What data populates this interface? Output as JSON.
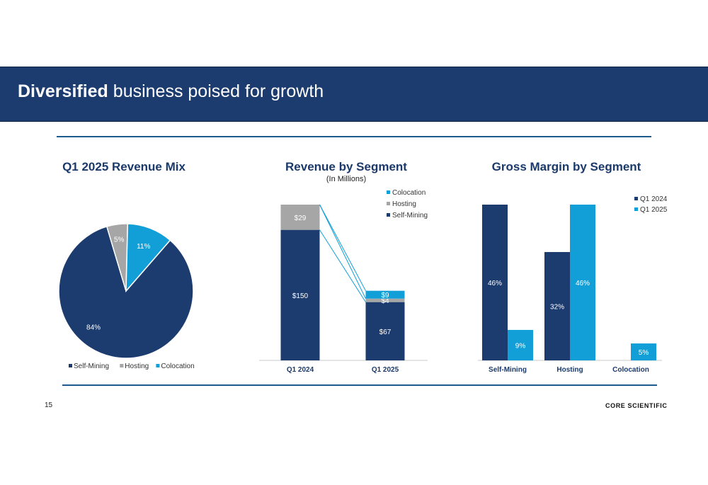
{
  "slide": {
    "title_bold": "Diversified",
    "title_rest": " business poised for growth",
    "page_number": "15",
    "logo_text": "CORE SCIENTIFIC"
  },
  "colors": {
    "navy": "#1c3b6e",
    "gray": "#a6a6a6",
    "cyan": "#129fd8",
    "rule": "#1f5a8f"
  },
  "chart_data": [
    {
      "type": "pie",
      "title": "Q1 2025 Revenue Mix",
      "categories": [
        "Self-Mining",
        "Hosting",
        "Colocation"
      ],
      "values": [
        84,
        5,
        11
      ],
      "labels": [
        "84%",
        "5%",
        "11%"
      ],
      "colors": [
        "#1c3b6e",
        "#a6a6a6",
        "#129fd8"
      ],
      "legend": "bottom"
    },
    {
      "type": "bar",
      "stacked": true,
      "title": "Revenue by Segment",
      "subtitle": "(In Millions)",
      "categories": [
        "Q1 2024",
        "Q1 2025"
      ],
      "series": [
        {
          "name": "Self-Mining",
          "values": [
            150,
            67
          ],
          "labels": [
            "$150",
            "$67"
          ],
          "color": "#1c3b6e"
        },
        {
          "name": "Hosting",
          "values": [
            29,
            4
          ],
          "labels": [
            "$29",
            "$4"
          ],
          "color": "#a6a6a6"
        },
        {
          "name": "Colocation",
          "values": [
            0,
            9
          ],
          "labels": [
            "",
            "$9"
          ],
          "color": "#129fd8"
        }
      ],
      "ylim": [
        0,
        179
      ],
      "legend": "top-right"
    },
    {
      "type": "bar",
      "title": "Gross Margin by Segment",
      "categories": [
        "Self-Mining",
        "Hosting",
        "Colocation"
      ],
      "series": [
        {
          "name": "Q1 2024",
          "values": [
            46,
            32,
            null
          ],
          "labels": [
            "46%",
            "32%",
            ""
          ],
          "color": "#1c3b6e"
        },
        {
          "name": "Q1 2025",
          "values": [
            9,
            46,
            5
          ],
          "labels": [
            "9%",
            "46%",
            "5%"
          ],
          "color": "#129fd8"
        }
      ],
      "ylim": [
        0,
        46
      ],
      "legend": "top-right"
    }
  ]
}
